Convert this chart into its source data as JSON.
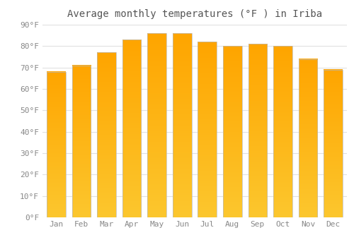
{
  "title": "Average monthly temperatures (°F ) in Iriba",
  "months": [
    "Jan",
    "Feb",
    "Mar",
    "Apr",
    "May",
    "Jun",
    "Jul",
    "Aug",
    "Sep",
    "Oct",
    "Nov",
    "Dec"
  ],
  "values": [
    68,
    71,
    77,
    83,
    86,
    86,
    82,
    80,
    81,
    80,
    74,
    69
  ],
  "bar_color_top": "#FFA500",
  "bar_color_bottom": "#F5C842",
  "bar_border_color": "#BBBBBB",
  "ylim": [
    0,
    90
  ],
  "yticks": [
    0,
    10,
    20,
    30,
    40,
    50,
    60,
    70,
    80,
    90
  ],
  "ytick_labels": [
    "0°F",
    "10°F",
    "20°F",
    "30°F",
    "40°F",
    "50°F",
    "60°F",
    "70°F",
    "80°F",
    "90°F"
  ],
  "background_color": "#FFFFFF",
  "grid_color": "#E0E0E0",
  "title_fontsize": 10,
  "tick_fontsize": 8,
  "bar_width": 0.75,
  "gradient_steps": 100
}
